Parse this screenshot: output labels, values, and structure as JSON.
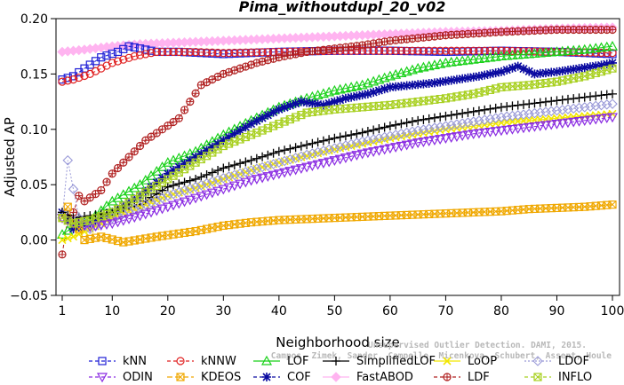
{
  "chart_data": {
    "type": "line",
    "title": "Pima_withoutdupl_20_v02",
    "xlabel": "Neighborhood size",
    "ylabel": "Adjusted AP",
    "xlim": [
      0,
      100
    ],
    "ylim": [
      -0.05,
      0.2
    ],
    "xticks": [
      1,
      10,
      20,
      30,
      40,
      50,
      60,
      70,
      80,
      90,
      100
    ],
    "yticks": [
      "−0.05",
      "0.00",
      "0.05",
      "0.10",
      "0.15",
      "0.20"
    ],
    "ytick_values": [
      -0.05,
      0.0,
      0.05,
      0.1,
      0.15,
      0.2
    ],
    "grid": false,
    "legend_position": "bottom",
    "watermark": [
      "Unsupervised Outlier Detection. DAMI, 2015.",
      "Campos, Zimek, Sander, Campello, Micenkova, Schubert, Assent, Houle"
    ],
    "series": [
      {
        "name": "kNN",
        "color": "#1f1fd6",
        "marker": "square",
        "dash": "4,3",
        "points": [
          [
            1,
            0.145
          ],
          [
            3,
            0.148
          ],
          [
            5,
            0.155
          ],
          [
            8,
            0.165
          ],
          [
            11,
            0.17
          ],
          [
            13,
            0.175
          ],
          [
            15,
            0.173
          ],
          [
            18,
            0.17
          ],
          [
            22,
            0.17
          ],
          [
            30,
            0.168
          ],
          [
            40,
            0.17
          ],
          [
            50,
            0.171
          ],
          [
            60,
            0.171
          ],
          [
            70,
            0.17
          ],
          [
            80,
            0.171
          ],
          [
            90,
            0.17
          ],
          [
            100,
            0.168
          ]
        ]
      },
      {
        "name": "kNNW",
        "color": "#e02020",
        "marker": "circle",
        "dash": "4,3",
        "points": [
          [
            1,
            0.143
          ],
          [
            3,
            0.145
          ],
          [
            6,
            0.15
          ],
          [
            10,
            0.16
          ],
          [
            14,
            0.166
          ],
          [
            18,
            0.17
          ],
          [
            24,
            0.17
          ],
          [
            30,
            0.169
          ],
          [
            40,
            0.17
          ],
          [
            50,
            0.171
          ],
          [
            60,
            0.171
          ],
          [
            70,
            0.171
          ],
          [
            80,
            0.171
          ],
          [
            90,
            0.17
          ],
          [
            100,
            0.169
          ]
        ]
      },
      {
        "name": "LOF",
        "color": "#19d119",
        "marker": "triangle",
        "dash": "",
        "points": [
          [
            1,
            0.005
          ],
          [
            3,
            0.012
          ],
          [
            6,
            0.018
          ],
          [
            10,
            0.035
          ],
          [
            15,
            0.05
          ],
          [
            20,
            0.07
          ],
          [
            25,
            0.08
          ],
          [
            30,
            0.095
          ],
          [
            35,
            0.108
          ],
          [
            40,
            0.12
          ],
          [
            45,
            0.128
          ],
          [
            50,
            0.135
          ],
          [
            55,
            0.14
          ],
          [
            60,
            0.148
          ],
          [
            65,
            0.155
          ],
          [
            70,
            0.16
          ],
          [
            75,
            0.163
          ],
          [
            80,
            0.166
          ],
          [
            85,
            0.168
          ],
          [
            90,
            0.17
          ],
          [
            95,
            0.172
          ],
          [
            100,
            0.175
          ]
        ]
      },
      {
        "name": "SimplifiedLOF",
        "color": "#000000",
        "marker": "plus",
        "dash": "",
        "points": [
          [
            1,
            0.025
          ],
          [
            3,
            0.02
          ],
          [
            6,
            0.022
          ],
          [
            10,
            0.025
          ],
          [
            15,
            0.032
          ],
          [
            20,
            0.048
          ],
          [
            25,
            0.055
          ],
          [
            30,
            0.065
          ],
          [
            35,
            0.072
          ],
          [
            40,
            0.08
          ],
          [
            45,
            0.086
          ],
          [
            50,
            0.092
          ],
          [
            55,
            0.097
          ],
          [
            60,
            0.103
          ],
          [
            65,
            0.108
          ],
          [
            70,
            0.112
          ],
          [
            75,
            0.116
          ],
          [
            80,
            0.12
          ],
          [
            85,
            0.123
          ],
          [
            90,
            0.126
          ],
          [
            95,
            0.129
          ],
          [
            100,
            0.132
          ]
        ]
      },
      {
        "name": "LoOP",
        "color": "#f2e600",
        "marker": "x",
        "dash": "",
        "points": [
          [
            1,
            0.0
          ],
          [
            3,
            0.003
          ],
          [
            6,
            0.01
          ],
          [
            10,
            0.02
          ],
          [
            15,
            0.03
          ],
          [
            20,
            0.04
          ],
          [
            25,
            0.047
          ],
          [
            30,
            0.055
          ],
          [
            35,
            0.063
          ],
          [
            40,
            0.07
          ],
          [
            45,
            0.076
          ],
          [
            50,
            0.082
          ],
          [
            55,
            0.087
          ],
          [
            60,
            0.092
          ],
          [
            65,
            0.096
          ],
          [
            70,
            0.1
          ],
          [
            75,
            0.103
          ],
          [
            80,
            0.106
          ],
          [
            85,
            0.108
          ],
          [
            90,
            0.11
          ],
          [
            95,
            0.112
          ],
          [
            100,
            0.114
          ]
        ]
      },
      {
        "name": "LDOF",
        "color": "#9a9ad8",
        "marker": "diamond",
        "dash": "2,2",
        "points": [
          [
            1,
            0.02
          ],
          [
            2,
            0.072
          ],
          [
            4,
            0.02
          ],
          [
            6,
            0.01
          ],
          [
            10,
            0.02
          ],
          [
            15,
            0.03
          ],
          [
            20,
            0.04
          ],
          [
            25,
            0.048
          ],
          [
            30,
            0.056
          ],
          [
            35,
            0.063
          ],
          [
            40,
            0.07
          ],
          [
            45,
            0.077
          ],
          [
            50,
            0.083
          ],
          [
            55,
            0.089
          ],
          [
            60,
            0.094
          ],
          [
            65,
            0.099
          ],
          [
            70,
            0.103
          ],
          [
            75,
            0.107
          ],
          [
            80,
            0.111
          ],
          [
            85,
            0.114
          ],
          [
            90,
            0.117
          ],
          [
            95,
            0.12
          ],
          [
            100,
            0.123
          ]
        ]
      },
      {
        "name": "ODIN",
        "color": "#8a2be2",
        "marker": "triangle-down",
        "dash": "4,3",
        "points": [
          [
            1,
            0.02
          ],
          [
            3,
            0.015
          ],
          [
            6,
            0.012
          ],
          [
            10,
            0.015
          ],
          [
            15,
            0.022
          ],
          [
            20,
            0.03
          ],
          [
            25,
            0.038
          ],
          [
            30,
            0.046
          ],
          [
            35,
            0.054
          ],
          [
            40,
            0.06
          ],
          [
            45,
            0.066
          ],
          [
            50,
            0.072
          ],
          [
            55,
            0.078
          ],
          [
            60,
            0.083
          ],
          [
            65,
            0.088
          ],
          [
            70,
            0.092
          ],
          [
            75,
            0.096
          ],
          [
            80,
            0.099
          ],
          [
            85,
            0.102
          ],
          [
            90,
            0.105
          ],
          [
            95,
            0.108
          ],
          [
            100,
            0.111
          ]
        ]
      },
      {
        "name": "KDEOS",
        "color": "#f0a800",
        "marker": "square-x",
        "dash": "6,3",
        "points": [
          [
            1,
            0.02
          ],
          [
            2,
            0.03
          ],
          [
            3,
            0.015
          ],
          [
            4,
            0.01
          ],
          [
            5,
            0.0
          ],
          [
            8,
            0.003
          ],
          [
            12,
            -0.002
          ],
          [
            18,
            0.003
          ],
          [
            25,
            0.008
          ],
          [
            30,
            0.013
          ],
          [
            35,
            0.016
          ],
          [
            40,
            0.018
          ],
          [
            45,
            0.019
          ],
          [
            50,
            0.02
          ],
          [
            55,
            0.021
          ],
          [
            60,
            0.022
          ],
          [
            65,
            0.023
          ],
          [
            70,
            0.024
          ],
          [
            75,
            0.025
          ],
          [
            80,
            0.026
          ],
          [
            85,
            0.028
          ],
          [
            90,
            0.029
          ],
          [
            95,
            0.03
          ],
          [
            100,
            0.032
          ]
        ]
      },
      {
        "name": "COF",
        "color": "#0a0aa0",
        "marker": "asterisk",
        "dash": "4,3",
        "points": [
          [
            1,
            0.025
          ],
          [
            3,
            0.01
          ],
          [
            6,
            0.015
          ],
          [
            10,
            0.025
          ],
          [
            15,
            0.04
          ],
          [
            20,
            0.06
          ],
          [
            25,
            0.075
          ],
          [
            30,
            0.09
          ],
          [
            35,
            0.105
          ],
          [
            40,
            0.118
          ],
          [
            44,
            0.125
          ],
          [
            48,
            0.122
          ],
          [
            52,
            0.128
          ],
          [
            56,
            0.132
          ],
          [
            60,
            0.138
          ],
          [
            64,
            0.14
          ],
          [
            68,
            0.142
          ],
          [
            72,
            0.145
          ],
          [
            76,
            0.148
          ],
          [
            80,
            0.152
          ],
          [
            83,
            0.157
          ],
          [
            86,
            0.15
          ],
          [
            90,
            0.152
          ],
          [
            94,
            0.155
          ],
          [
            98,
            0.158
          ],
          [
            100,
            0.16
          ]
        ]
      },
      {
        "name": "FastABOD",
        "color": "#ffb4f0",
        "marker": "diamond-filled",
        "dash": "",
        "points": [
          [
            1,
            0.17
          ],
          [
            5,
            0.172
          ],
          [
            10,
            0.175
          ],
          [
            15,
            0.177
          ],
          [
            20,
            0.178
          ],
          [
            30,
            0.18
          ],
          [
            40,
            0.182
          ],
          [
            50,
            0.184
          ],
          [
            60,
            0.186
          ],
          [
            70,
            0.188
          ],
          [
            80,
            0.189
          ],
          [
            90,
            0.191
          ],
          [
            100,
            0.192
          ]
        ]
      },
      {
        "name": "LDF",
        "color": "#b02020",
        "marker": "circle-plus",
        "dash": "4,3",
        "points": [
          [
            1,
            -0.013
          ],
          [
            2,
            0.02
          ],
          [
            3,
            0.025
          ],
          [
            4,
            0.04
          ],
          [
            5,
            0.035
          ],
          [
            8,
            0.045
          ],
          [
            10,
            0.06
          ],
          [
            13,
            0.075
          ],
          [
            16,
            0.09
          ],
          [
            19,
            0.1
          ],
          [
            22,
            0.11
          ],
          [
            24,
            0.125
          ],
          [
            26,
            0.14
          ],
          [
            28,
            0.145
          ],
          [
            30,
            0.15
          ],
          [
            33,
            0.155
          ],
          [
            36,
            0.16
          ],
          [
            40,
            0.165
          ],
          [
            45,
            0.17
          ],
          [
            50,
            0.173
          ],
          [
            55,
            0.176
          ],
          [
            60,
            0.18
          ],
          [
            70,
            0.185
          ],
          [
            80,
            0.188
          ],
          [
            90,
            0.19
          ],
          [
            100,
            0.19
          ]
        ]
      },
      {
        "name": "INFLO",
        "color": "#a8d020",
        "marker": "square-x",
        "dash": "4,3",
        "points": [
          [
            1,
            0.02
          ],
          [
            3,
            0.015
          ],
          [
            6,
            0.018
          ],
          [
            10,
            0.025
          ],
          [
            15,
            0.04
          ],
          [
            20,
            0.055
          ],
          [
            25,
            0.07
          ],
          [
            30,
            0.085
          ],
          [
            35,
            0.095
          ],
          [
            40,
            0.105
          ],
          [
            45,
            0.115
          ],
          [
            50,
            0.118
          ],
          [
            55,
            0.12
          ],
          [
            60,
            0.122
          ],
          [
            65,
            0.125
          ],
          [
            70,
            0.128
          ],
          [
            75,
            0.132
          ],
          [
            80,
            0.138
          ],
          [
            85,
            0.14
          ],
          [
            90,
            0.143
          ],
          [
            95,
            0.148
          ],
          [
            100,
            0.155
          ]
        ]
      }
    ]
  }
}
